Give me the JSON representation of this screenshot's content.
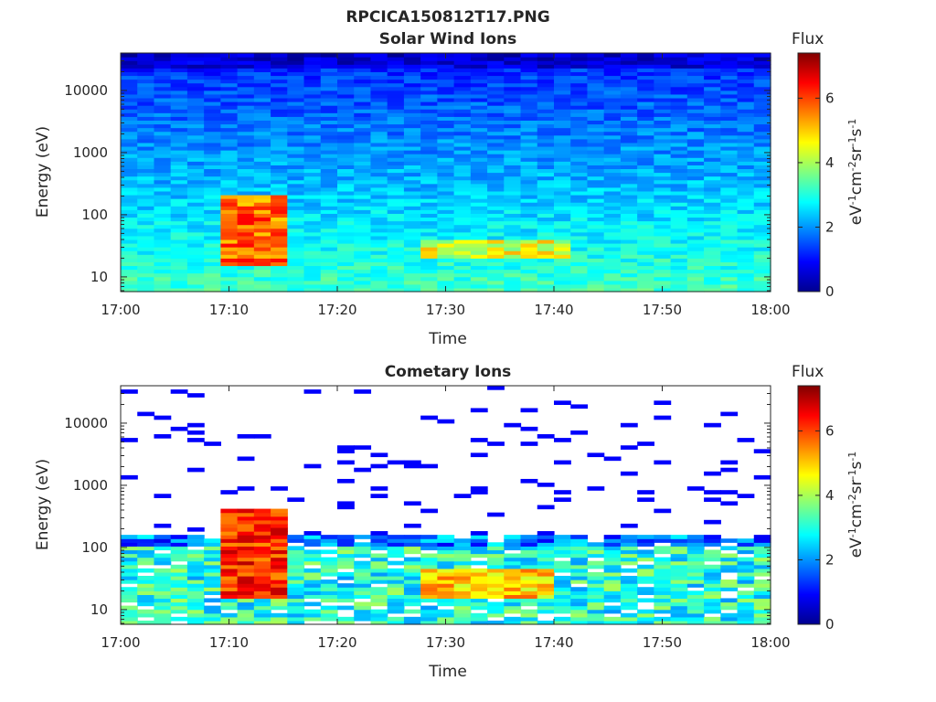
{
  "figure_title": "RPCICA150812T17.PNG",
  "chart_data": [
    {
      "type": "heatmap",
      "title": "Solar Wind Ions",
      "xlabel": "Time",
      "ylabel": "Energy (eV)",
      "x_range": [
        "17:00",
        "18:00"
      ],
      "x_ticks": [
        "17:00",
        "17:10",
        "17:20",
        "17:30",
        "17:40",
        "17:50",
        "18:00"
      ],
      "y_scale": "log",
      "y_range": [
        5.8,
        40000
      ],
      "y_ticks": [
        "10",
        "100",
        "1000",
        "10000"
      ],
      "colorbar": {
        "label": "Flux",
        "units": "eV-1cm-2sr-1s-1",
        "range": [
          0,
          7.4
        ],
        "ticks": [
          "0",
          "2",
          "4",
          "6"
        ],
        "colormap": "jet"
      },
      "features": [
        {
          "t_start": "17:10",
          "t_end": "17:15",
          "e_low": 15,
          "e_high": 200,
          "peak_flux": 6.5
        },
        {
          "t_start": "17:28",
          "t_end": "17:41",
          "e_low": 20,
          "e_high": 40,
          "peak_flux": 5.2
        }
      ]
    },
    {
      "type": "heatmap",
      "title": "Cometary Ions",
      "xlabel": "Time",
      "ylabel": "Energy (eV)",
      "x_range": [
        "17:00",
        "18:00"
      ],
      "x_ticks": [
        "17:00",
        "17:10",
        "17:20",
        "17:30",
        "17:40",
        "17:50",
        "18:00"
      ],
      "y_scale": "log",
      "y_range": [
        5.8,
        40000
      ],
      "y_ticks": [
        "10",
        "100",
        "1000",
        "10000"
      ],
      "colorbar": {
        "label": "Flux",
        "units": "eV-1cm-2sr-1s-1",
        "range": [
          0,
          7.4
        ],
        "ticks": [
          "0",
          "2",
          "4",
          "6"
        ],
        "colormap": "jet"
      },
      "features": [
        {
          "t_start": "17:10",
          "t_end": "17:15",
          "e_low": 15,
          "e_high": 400,
          "peak_flux": 7.0
        },
        {
          "t_start": "17:28",
          "t_end": "17:40",
          "e_low": 15,
          "e_high": 45,
          "peak_flux": 5.8
        }
      ]
    }
  ]
}
